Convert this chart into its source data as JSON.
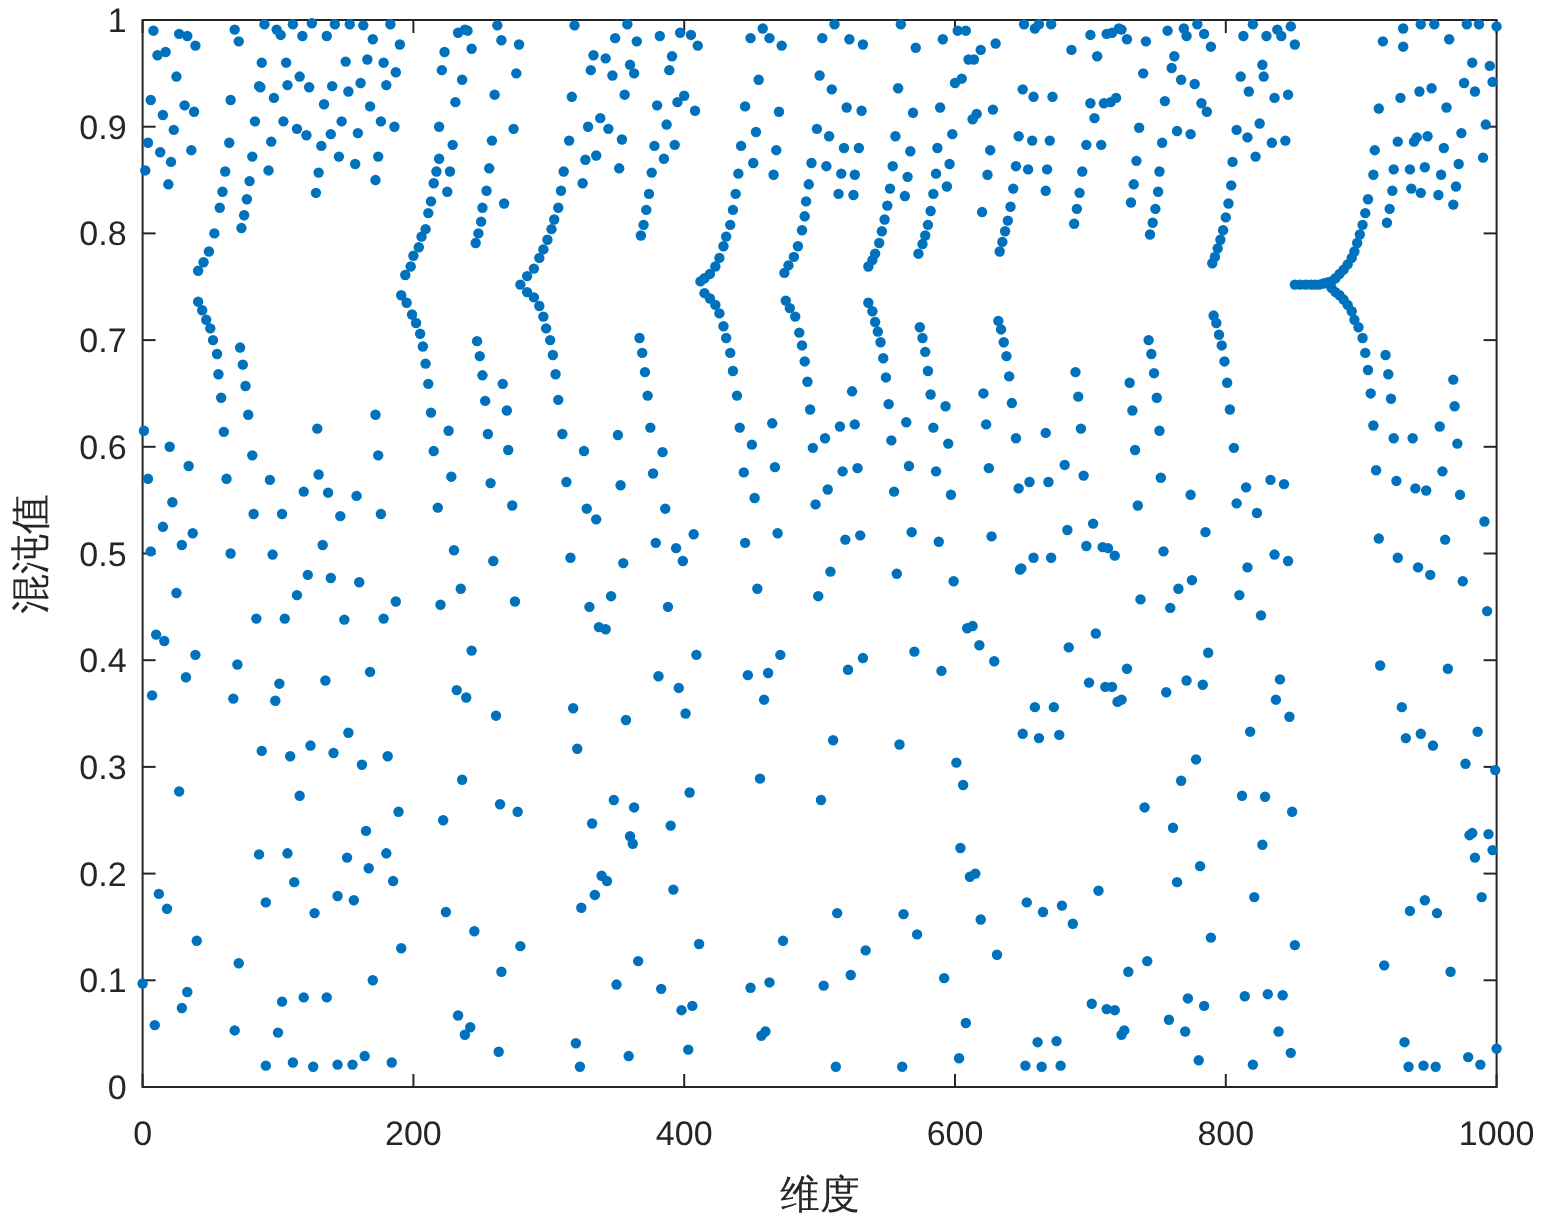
{
  "chart_data": {
    "type": "scatter",
    "xlabel": "维度",
    "ylabel": "混沌值",
    "color": "#0072bd",
    "marker": "circle",
    "xlim": [
      0,
      1000
    ],
    "ylim": [
      0,
      1
    ],
    "xticks": [
      0,
      200,
      400,
      600,
      800,
      1000
    ],
    "yticks": [
      0,
      0.1,
      0.2,
      0.3,
      0.4,
      0.5,
      0.6,
      0.7,
      0.8,
      0.9,
      1
    ],
    "x": [
      8,
      11,
      17,
      27,
      33,
      39,
      25,
      6,
      15,
      31,
      38,
      23,
      4,
      13,
      21,
      2,
      19,
      36,
      41,
      45,
      49,
      53,
      57,
      59,
      61,
      64,
      41,
      44,
      47,
      50,
      52,
      55,
      56,
      58,
      60,
      62,
      73,
      75,
      77,
      79,
      81,
      83,
      86,
      88,
      90,
      72,
      74,
      76,
      78,
      81,
      82,
      1,
      20,
      34,
      4,
      22,
      15,
      29,
      37,
      6,
      68,
      71,
      99,
      102,
      111,
      125,
      118,
      136,
      142,
      153,
      163,
      183,
      170,
      190,
      106,
      116,
      107,
      87,
      123,
      140,
      150,
      166,
      178,
      187,
      161,
      152,
      180,
      168,
      134,
      97,
      65,
      104,
      114,
      121,
      139,
      147,
      159,
      176,
      186,
      132,
      95,
      145,
      157,
      174,
      93,
      130,
      172,
      128,
      194,
      198,
      200,
      204,
      206,
      209,
      211,
      213,
      215,
      217,
      219,
      219,
      221,
      223,
      191,
      195,
      199,
      202,
      205,
      207,
      209,
      211,
      213,
      215,
      218,
      230,
      246,
      248,
      250,
      251,
      254,
      256,
      258,
      260,
      267,
      274,
      276,
      278,
      265,
      262,
      243,
      236,
      231,
      229,
      227,
      225,
      238,
      240,
      233,
      247,
      249,
      251,
      253,
      255,
      257,
      259,
      266,
      269,
      270,
      273,
      226,
      228,
      129,
      172,
      174,
      130,
      94,
      119,
      137,
      158,
      103,
      146,
      176,
      133,
      65,
      96,
      316,
      279,
      284,
      289,
      293,
      296,
      299,
      302,
      304,
      307,
      309,
      311,
      315,
      317,
      319,
      284,
      289,
      293,
      296,
      298,
      301,
      303,
      305,
      307,
      310,
      313,
      326,
      328,
      335,
      329,
      327,
      325,
      335,
      338,
      344,
      331,
      333,
      342,
      349,
      358,
      365,
      382,
      397,
      405,
      410,
      347,
      360,
      363,
      391,
      389,
      356,
      380,
      395,
      400,
      408,
      387,
      354,
      378,
      393,
      385,
      352,
      376,
      374,
      372,
      370,
      368,
      412,
      415,
      419,
      423,
      426,
      429,
      431,
      434,
      436,
      438,
      440,
      442,
      453,
      445,
      455,
      449,
      458,
      463,
      472,
      451,
      466,
      468,
      470,
      415,
      419,
      423,
      426,
      429,
      431,
      434,
      436,
      439,
      441,
      444,
      452,
      450,
      465,
      467,
      469,
      445,
      367,
      369,
      371,
      373,
      375,
      384,
      377,
      351,
      353,
      386,
      379,
      394,
      399,
      407,
      355,
      474,
      477,
      481,
      484,
      487,
      489,
      490,
      492,
      494,
      498,
      507,
      505,
      514,
      516,
      518,
      520,
      509,
      500,
      502,
      511,
      522,
      532,
      529,
      526,
      525,
      531,
      475,
      478,
      482,
      485,
      487,
      489,
      491,
      493,
      495,
      497,
      504,
      506,
      515,
      517,
      519,
      524,
      526,
      528,
      530,
      536,
      539,
      541,
      544,
      546,
      548,
      550,
      552,
      554,
      556,
      558,
      560,
      563,
      565,
      567,
      569,
      571,
      536,
      539,
      541,
      543,
      545,
      547,
      549,
      551,
      553,
      555,
      564,
      566,
      568,
      574,
      576,
      578,
      580,
      582,
      584,
      586,
      588,
      593,
      595,
      597,
      573,
      576,
      578,
      580,
      582,
      584,
      586,
      587,
      589,
      591,
      596,
      594,
      598,
      600,
      605,
      602,
      608,
      610,
      614,
      619,
      630,
      613,
      616,
      628,
      624,
      620,
      626,
      633,
      635,
      637,
      639,
      641,
      643,
      645,
      647,
      650,
      651,
      657,
      654,
      658,
      667,
      668,
      670,
      672,
      662,
      671,
      659,
      632,
      634,
      636,
      638,
      640,
      642,
      645,
      647,
      623,
      625,
      627,
      621,
      655,
      669,
      667,
      681,
      683,
      658,
      671,
      649,
      700,
      712,
      716,
      721,
      723,
      727,
      741,
      686,
      705,
      757,
      769,
      771,
      779,
      784,
      789,
      762,
      760,
      767,
      777,
      739,
      700,
      710,
      715,
      719,
      703,
      755,
      782,
      786,
      736,
      764,
      774,
      697,
      708,
      753,
      734,
      694,
      751,
      732,
      692,
      750,
      730,
      690,
      748,
      688,
      746,
      744,
      790,
      792,
      794,
      796,
      798,
      800,
      802,
      804,
      805,
      808,
      811,
      813,
      820,
      817,
      816,
      822,
      825,
      828,
      827,
      830,
      838,
      841,
      848,
      851,
      836,
      846,
      834,
      844,
      791,
      793,
      795,
      797,
      799,
      801,
      803,
      806,
      808,
      815,
      823,
      833,
      843,
      816,
      836,
      846,
      743,
      745,
      747,
      749,
      751,
      752,
      729,
      731,
      733,
      735,
      689,
      691,
      693,
      695,
      702,
      697,
      709,
      713,
      718,
      754,
      774,
      785,
      851,
      855,
      859,
      863,
      866,
      869,
      872,
      875,
      878,
      878,
      881,
      884,
      887,
      890,
      893,
      895,
      897,
      899,
      901,
      903,
      905,
      909,
      910,
      913,
      916,
      919,
      921,
      923,
      924,
      927,
      929,
      931,
      881,
      884,
      887,
      890,
      893,
      895,
      898,
      901,
      903,
      905,
      907,
      909,
      911,
      913,
      918,
      920,
      922,
      926,
      938,
      940,
      927,
      942,
      948,
      936,
      939,
      941,
      943,
      937,
      944,
      949,
      947,
      952,
      959,
      957,
      961,
      963,
      965,
      954,
      944,
      931,
      968,
      970,
      972,
      974,
      976,
      978,
      982,
      984,
      992,
      990,
      995,
      997,
      987,
      1000,
      968,
      969,
      971,
      958,
      960,
      973,
      962,
      991,
      924,
      25,
      10,
      16,
      39,
      32,
      7,
      27,
      12,
      18,
      40,
      0,
      33,
      29,
      9,
      71,
      68,
      100,
      103,
      119,
      136,
      170,
      91,
      111,
      126,
      144,
      155,
      164,
      184,
      122,
      114,
      139,
      160,
      84,
      105,
      149,
      178,
      187,
      70,
      67,
      98,
      101,
      135,
      168,
      88,
      109,
      124,
      141,
      152,
      162,
      181,
      116,
      189,
      165,
      86,
      107,
      151,
      167,
      180,
      112,
      185,
      91,
      127,
      144,
      156,
      191,
      220,
      235,
      243,
      232,
      239,
      261,
      236,
      222,
      264,
      277,
      275,
      224,
      245,
      279,
      265,
      233,
      242,
      238,
      263,
      320,
      323,
      330,
      337,
      342,
      318,
      321,
      332,
      339,
      343,
      334,
      324,
      346,
      388,
      454,
      508,
      499,
      557,
      599,
      648,
      409,
      381,
      396,
      401,
      357,
      447,
      462,
      471,
      459,
      521,
      532,
      570,
      590,
      609,
      613,
      618,
      629,
      659,
      673,
      650,
      662,
      677,
      684,
      510,
      559,
      601,
      606,
      456,
      404,
      348,
      363,
      501,
      390,
      360,
      362,
      604,
      611,
      615,
      392,
      513,
      562,
      572,
      619,
      653,
      665,
      679,
      366,
      411,
      473,
      534,
      631,
      350,
      383,
      398,
      406,
      449,
      463,
      503,
      523,
      592,
      608,
      457,
      460,
      359,
      403,
      512,
      561,
      603,
      652,
      664,
      678,
      661,
      675,
      704,
      737,
      759,
      765,
      775,
      810,
      826,
      727,
      699,
      711,
      716,
      720,
      723,
      756,
      771,
      783,
      787,
      840,
      837,
      847,
      818,
      778,
      767,
      740,
      761,
      812,
      829,
      849,
      827,
      781,
      764,
      821,
      706,
      687,
      789,
      851,
      742,
      728,
      701,
      712,
      718,
      758,
      772,
      784,
      814,
      831,
      842,
      723,
      725,
      770,
      839,
      848,
      780,
      820,
      951,
      975,
      993,
      914,
      964,
      930,
      933,
      944,
      953,
      986,
      977,
      999,
      980,
      982,
      994,
      997,
      984,
      989,
      936,
      947,
      956,
      917,
      966,
      932,
      935,
      946,
      955,
      979,
      988,
      1000
    ],
    "values": [
      0.99,
      0.967,
      0.97,
      0.987,
      0.985,
      0.976,
      0.947,
      0.925,
      0.911,
      0.92,
      0.914,
      0.897,
      0.885,
      0.876,
      0.867,
      0.859,
      0.846,
      0.878,
      0.765,
      0.773,
      0.783,
      0.8,
      0.824,
      0.839,
      0.858,
      0.885,
      0.736,
      0.728,
      0.719,
      0.711,
      0.7,
      0.687,
      0.668,
      0.646,
      0.614,
      0.57,
      0.805,
      0.817,
      0.832,
      0.849,
      0.872,
      0.905,
      0.938,
      0.96,
      0.996,
      0.693,
      0.677,
      0.657,
      0.63,
      0.592,
      0.537,
      0.615,
      0.6,
      0.582,
      0.57,
      0.548,
      0.525,
      0.508,
      0.519,
      0.502,
      0.991,
      0.98,
      0.991,
      0.986,
      0.996,
      0.997,
      0.985,
      0.985,
      0.996,
      0.996,
      0.995,
      0.996,
      0.982,
      0.977,
      0.96,
      0.947,
      0.939,
      0.937,
      0.937,
      0.938,
      0.961,
      0.963,
      0.96,
      0.951,
      0.941,
      0.933,
      0.939,
      0.919,
      0.921,
      0.927,
      0.925,
      0.905,
      0.898,
      0.892,
      0.893,
      0.905,
      0.894,
      0.905,
      0.9,
      0.882,
      0.886,
      0.872,
      0.865,
      0.872,
      0.859,
      0.857,
      0.85,
      0.838,
      0.761,
      0.769,
      0.779,
      0.787,
      0.797,
      0.804,
      0.819,
      0.83,
      0.847,
      0.858,
      0.87,
      0.9,
      0.953,
      0.97,
      0.742,
      0.735,
      0.724,
      0.716,
      0.706,
      0.694,
      0.678,
      0.659,
      0.632,
      0.596,
      0.543,
      0.503,
      0.791,
      0.8,
      0.811,
      0.824,
      0.84,
      0.861,
      0.887,
      0.93,
      0.828,
      0.898,
      0.95,
      0.977,
      0.981,
      0.995,
      0.973,
      0.944,
      0.923,
      0.883,
      0.858,
      0.839,
      0.991,
      0.99,
      0.988,
      0.699,
      0.685,
      0.667,
      0.643,
      0.612,
      0.566,
      0.493,
      0.659,
      0.634,
      0.597,
      0.545,
      0.615,
      0.572,
      0.617,
      0.63,
      0.592,
      0.574,
      0.569,
      0.558,
      0.557,
      0.554,
      0.537,
      0.535,
      0.537,
      0.508,
      0.5,
      0.499,
      0.496,
      0.752,
      0.76,
      0.767,
      0.777,
      0.785,
      0.794,
      0.804,
      0.813,
      0.824,
      0.84,
      0.858,
      0.887,
      0.928,
      0.995,
      0.745,
      0.74,
      0.732,
      0.722,
      0.711,
      0.7,
      0.686,
      0.668,
      0.644,
      0.612,
      0.567,
      0.596,
      0.542,
      0.532,
      0.9,
      0.869,
      0.847,
      0.873,
      0.908,
      0.898,
      0.953,
      0.967,
      0.964,
      0.983,
      0.996,
      0.98,
      0.985,
      0.988,
      0.986,
      0.976,
      0.948,
      0.958,
      0.95,
      0.966,
      0.953,
      0.93,
      0.92,
      0.923,
      0.929,
      0.915,
      0.902,
      0.888,
      0.882,
      0.883,
      0.87,
      0.861,
      0.857,
      0.837,
      0.822,
      0.808,
      0.798,
      0.755,
      0.758,
      0.762,
      0.769,
      0.777,
      0.788,
      0.797,
      0.808,
      0.822,
      0.837,
      0.856,
      0.882,
      0.895,
      0.919,
      0.944,
      0.983,
      0.992,
      0.983,
      0.976,
      0.866,
      0.855,
      0.878,
      0.914,
      0.744,
      0.739,
      0.733,
      0.725,
      0.713,
      0.702,
      0.688,
      0.671,
      0.648,
      0.618,
      0.576,
      0.552,
      0.602,
      0.622,
      0.581,
      0.519,
      0.51,
      0.702,
      0.688,
      0.67,
      0.648,
      0.618,
      0.595,
      0.575,
      0.611,
      0.564,
      0.542,
      0.51,
      0.505,
      0.493,
      0.518,
      0.491,
      0.763,
      0.77,
      0.778,
      0.788,
      0.803,
      0.816,
      0.83,
      0.846,
      0.866,
      0.898,
      0.891,
      0.863,
      0.837,
      0.856,
      0.88,
      0.918,
      0.935,
      0.948,
      0.983,
      0.996,
      0.982,
      0.977,
      0.88,
      0.855,
      0.836,
      0.915,
      0.737,
      0.73,
      0.722,
      0.707,
      0.695,
      0.68,
      0.661,
      0.635,
      0.599,
      0.546,
      0.608,
      0.56,
      0.619,
      0.577,
      0.513,
      0.652,
      0.621,
      0.58,
      0.517,
      0.769,
      0.775,
      0.781,
      0.791,
      0.802,
      0.813,
      0.826,
      0.842,
      0.863,
      0.891,
      0.936,
      0.996,
      0.835,
      0.853,
      0.877,
      0.913,
      0.974,
      0.735,
      0.727,
      0.717,
      0.708,
      0.698,
      0.683,
      0.665,
      0.64,
      0.606,
      0.558,
      0.623,
      0.582,
      0.52,
      0.712,
      0.702,
      0.689,
      0.671,
      0.649,
      0.618,
      0.577,
      0.511,
      0.638,
      0.603,
      0.555,
      0.781,
      0.79,
      0.798,
      0.808,
      0.821,
      0.837,
      0.856,
      0.88,
      0.918,
      0.982,
      0.865,
      0.844,
      0.893,
      0.941,
      0.945,
      0.99,
      0.99,
      0.963,
      0.963,
      0.972,
      0.978,
      0.907,
      0.912,
      0.916,
      0.855,
      0.82,
      0.878,
      0.783,
      0.792,
      0.802,
      0.812,
      0.825,
      0.842,
      0.863,
      0.891,
      0.935,
      0.996,
      0.887,
      0.86,
      0.928,
      0.84,
      0.86,
      0.887,
      0.928,
      0.996,
      0.996,
      0.992,
      0.718,
      0.71,
      0.698,
      0.685,
      0.666,
      0.641,
      0.608,
      0.561,
      0.621,
      0.58,
      0.516,
      0.65,
      0.567,
      0.567,
      0.613,
      0.583,
      0.522,
      0.496,
      0.496,
      0.486,
      0.986,
      0.987,
      0.988,
      0.992,
      0.991,
      0.982,
      0.98,
      0.972,
      0.966,
      0.99,
      0.992,
      0.985,
      0.996,
      0.987,
      0.975,
      0.966,
      0.955,
      0.944,
      0.94,
      0.95,
      0.922,
      0.922,
      0.923,
      0.927,
      0.908,
      0.924,
      0.922,
      0.914,
      0.899,
      0.896,
      0.893,
      0.883,
      0.883,
      0.885,
      0.868,
      0.858,
      0.858,
      0.846,
      0.838,
      0.839,
      0.829,
      0.823,
      0.823,
      0.809,
      0.81,
      0.799,
      0.772,
      0.778,
      0.786,
      0.794,
      0.803,
      0.815,
      0.828,
      0.845,
      0.867,
      0.897,
      0.947,
      0.985,
      0.996,
      0.933,
      0.89,
      0.872,
      0.903,
      0.947,
      0.958,
      0.985,
      0.991,
      0.985,
      0.994,
      0.977,
      0.927,
      0.93,
      0.885,
      0.887,
      0.723,
      0.716,
      0.705,
      0.695,
      0.68,
      0.66,
      0.635,
      0.599,
      0.547,
      0.562,
      0.538,
      0.569,
      0.565,
      0.487,
      0.499,
      0.493,
      0.7,
      0.687,
      0.669,
      0.646,
      0.615,
      0.571,
      0.66,
      0.634,
      0.597,
      0.545,
      0.67,
      0.647,
      0.617,
      0.573,
      0.528,
      0.507,
      0.506,
      0.505,
      0.498,
      0.502,
      0.555,
      0.52,
      0.752,
      0.752,
      0.752,
      0.752,
      0.752,
      0.752,
      0.753,
      0.754,
      0.755,
      0.749,
      0.758,
      0.762,
      0.766,
      0.771,
      0.777,
      0.783,
      0.791,
      0.799,
      0.808,
      0.819,
      0.832,
      0.855,
      0.878,
      0.917,
      0.98,
      0.81,
      0.823,
      0.84,
      0.86,
      0.886,
      0.927,
      0.992,
      0.745,
      0.742,
      0.738,
      0.733,
      0.727,
      0.719,
      0.712,
      0.702,
      0.688,
      0.672,
      0.65,
      0.62,
      0.578,
      0.514,
      0.686,
      0.668,
      0.645,
      0.568,
      0.608,
      0.561,
      0.496,
      0.487,
      0.559,
      0.86,
      0.886,
      0.89,
      0.933,
      0.842,
      0.838,
      0.891,
      0.862,
      0.936,
      0.855,
      0.836,
      0.88,
      0.918,
      0.982,
      0.996,
      0.996,
      0.975,
      0.827,
      0.844,
      0.865,
      0.894,
      0.941,
      0.996,
      0.96,
      0.933,
      0.902,
      0.871,
      0.957,
      0.942,
      0.996,
      0.994,
      0.663,
      0.638,
      0.603,
      0.619,
      0.577,
      0.555,
      0.513,
      0.53,
      0.608,
      0.463,
      0.424,
      0.418,
      0.405,
      0.384,
      0.367,
      0.277,
      0.181,
      0.167,
      0.137,
      0.097,
      0.089,
      0.074,
      0.058,
      0.116,
      0.053,
      0.051,
      0.08,
      0.084,
      0.084,
      0.1,
      0.02,
      0.023,
      0.019,
      0.021,
      0.021,
      0.029,
      0.023,
      0.48,
      0.461,
      0.477,
      0.473,
      0.439,
      0.439,
      0.438,
      0.439,
      0.455,
      0.396,
      0.364,
      0.362,
      0.378,
      0.381,
      0.389,
      0.315,
      0.31,
      0.32,
      0.313,
      0.332,
      0.302,
      0.31,
      0.273,
      0.258,
      0.24,
      0.218,
      0.219,
      0.215,
      0.205,
      0.219,
      0.192,
      0.193,
      0.173,
      0.163,
      0.179,
      0.175,
      0.13,
      0.452,
      0.467,
      0.409,
      0.372,
      0.365,
      0.348,
      0.288,
      0.25,
      0.265,
      0.258,
      0.455,
      0.164,
      0.146,
      0.132,
      0.108,
      0.067,
      0.056,
      0.049,
      0.033,
      0.041,
      0.019,
      0.45,
      0.431,
      0.429,
      0.355,
      0.317,
      0.247,
      0.198,
      0.193,
      0.18,
      0.168,
      0.46,
      0.45,
      0.467,
      0.483,
      0.46,
      0.481,
      0.474,
      0.485,
      0.405,
      0.385,
      0.374,
      0.35,
      0.344,
      0.386,
      0.388,
      0.405,
      0.363,
      0.391,
      0.402,
      0.408,
      0.39,
      0.43,
      0.432,
      0.414,
      0.399,
      0.356,
      0.356,
      0.331,
      0.327,
      0.33,
      0.412,
      0.325,
      0.321,
      0.304,
      0.283,
      0.289,
      0.276,
      0.269,
      0.262,
      0.269,
      0.245,
      0.235,
      0.228,
      0.224,
      0.197,
      0.2,
      0.185,
      0.163,
      0.162,
      0.143,
      0.157,
      0.173,
      0.164,
      0.17,
      0.118,
      0.134,
      0.137,
      0.128,
      0.124,
      0.096,
      0.092,
      0.072,
      0.076,
      0.093,
      0.098,
      0.095,
      0.105,
      0.102,
      0.06,
      0.048,
      0.052,
      0.029,
      0.035,
      0.019,
      0.019,
      0.027,
      0.02,
      0.019,
      0.02,
      0.042,
      0.043,
      0.425,
      0.457,
      0.449,
      0.467,
      0.475,
      0.461,
      0.442,
      0.392,
      0.379,
      0.375,
      0.375,
      0.361,
      0.363,
      0.37,
      0.381,
      0.377,
      0.407,
      0.382,
      0.363,
      0.347,
      0.333,
      0.307,
      0.287,
      0.262,
      0.243,
      0.273,
      0.272,
      0.258,
      0.227,
      0.207,
      0.192,
      0.178,
      0.184,
      0.153,
      0.14,
      0.133,
      0.118,
      0.108,
      0.078,
      0.073,
      0.072,
      0.063,
      0.083,
      0.076,
      0.085,
      0.087,
      0.086,
      0.049,
      0.053,
      0.052,
      0.052,
      0.032,
      0.025,
      0.021,
      0.48,
      0.474,
      0.446,
      0.395,
      0.392,
      0.356,
      0.327,
      0.331,
      0.32,
      0.333,
      0.303,
      0.297,
      0.236,
      0.238,
      0.237,
      0.222,
      0.215,
      0.178,
      0.165,
      0.175,
      0.163,
      0.114,
      0.108,
      0.042,
      0.019,
      0.02,
      0.019,
      0.028,
      0.021,
      0.036
    ]
  }
}
